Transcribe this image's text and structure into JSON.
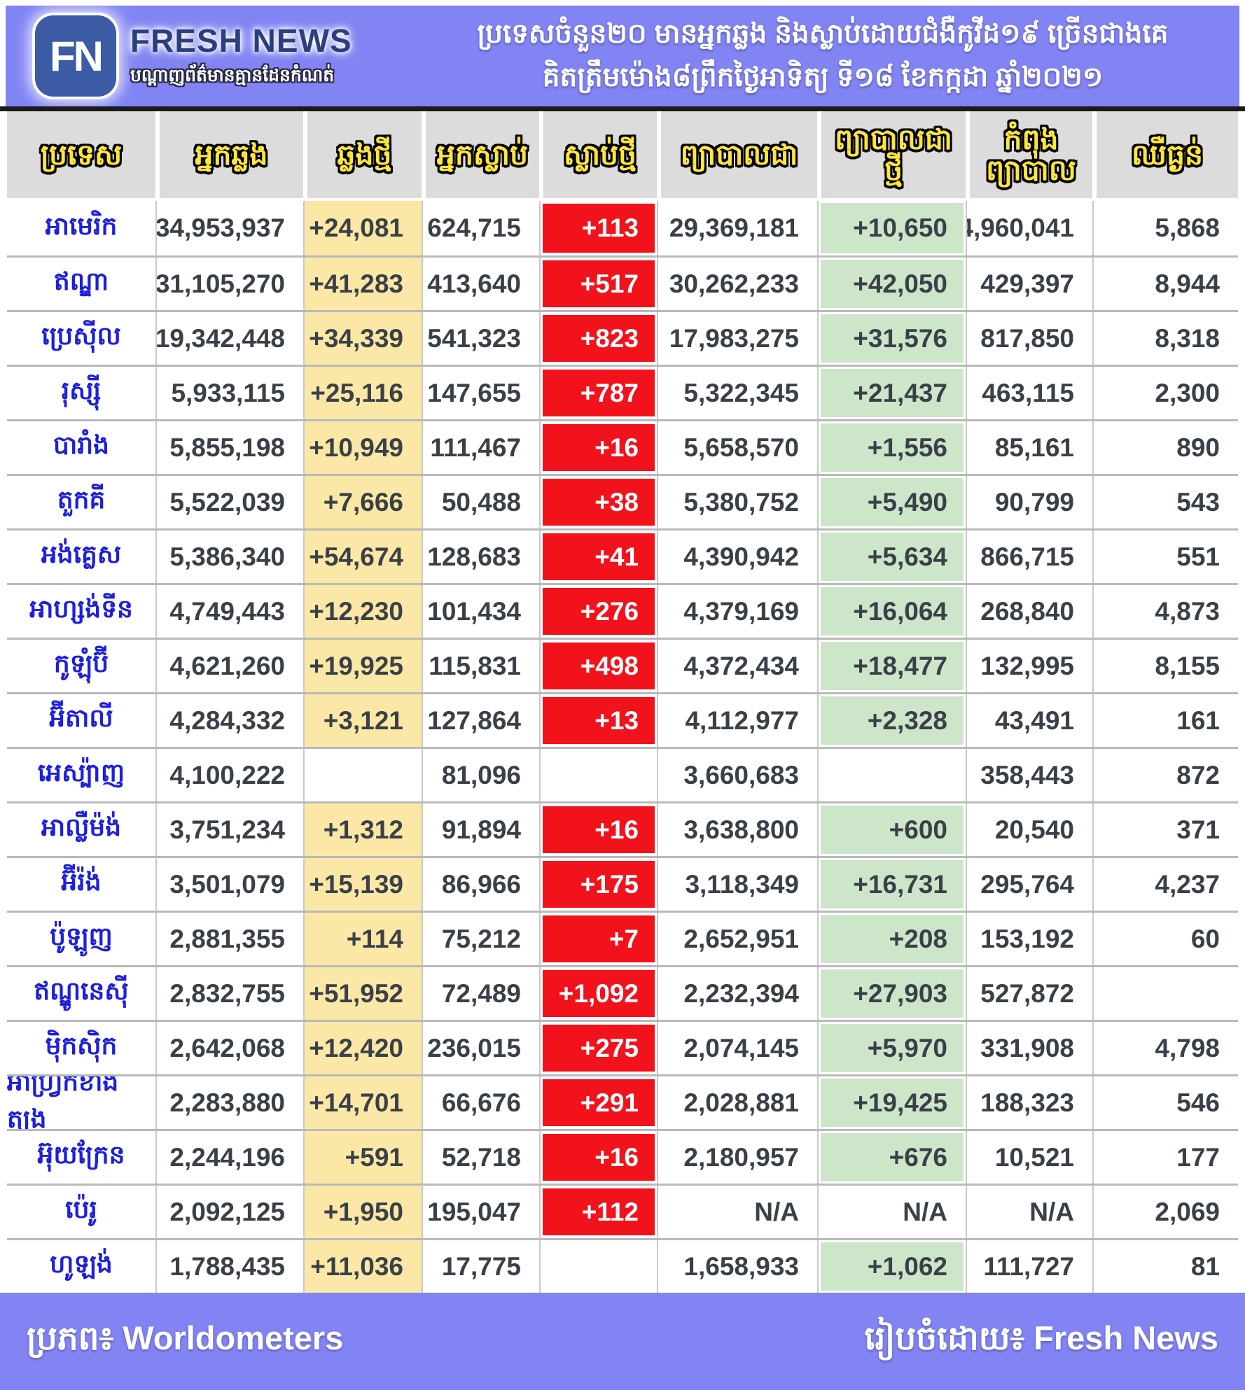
{
  "header": {
    "logo": {
      "monogram": "FN",
      "brand": "FRESH NEWS",
      "tagline": "បណ្តាញព័ត៌មានគ្មានដែនកំណត់"
    },
    "title_line1": "ប្រទេសចំនួន២០ មានអ្នកឆ្លង និងស្លាប់ដោយជំងឺកូវីដ១៩ ច្រើនជាងគេ",
    "title_line2": "គិតត្រឹមម៉ោង៨ព្រឹកថ្ងៃអាទិត្យ ទី១៨ ខែកក្កដា ឆ្នាំ២០២១"
  },
  "chart_data": {
    "type": "table",
    "columns": [
      {
        "key": "country",
        "label": "ប្រទេស"
      },
      {
        "key": "infected",
        "label": "អ្នកឆ្លង"
      },
      {
        "key": "new_cases",
        "label": "ឆ្លងថ្មី"
      },
      {
        "key": "deaths",
        "label": "អ្នកស្លាប់"
      },
      {
        "key": "new_deaths",
        "label": "ស្លាប់ថ្មី"
      },
      {
        "key": "recovered",
        "label": "ព្យាបាលជា"
      },
      {
        "key": "new_recovered",
        "label": "ព្យាបាលជា\nថ្មី"
      },
      {
        "key": "active",
        "label": "កំពុង\nព្យាបាល"
      },
      {
        "key": "critical",
        "label": "ឈឺធ្ងន់"
      }
    ],
    "rows": [
      {
        "country": "អាមេរិក",
        "infected": "34,953,937",
        "new_cases": "+24,081",
        "deaths": "624,715",
        "new_deaths": "+113",
        "recovered": "29,369,181",
        "new_recovered": "+10,650",
        "active": "4,960,041",
        "critical": "5,868"
      },
      {
        "country": "ឥណ្ឌា",
        "infected": "31,105,270",
        "new_cases": "+41,283",
        "deaths": "413,640",
        "new_deaths": "+517",
        "recovered": "30,262,233",
        "new_recovered": "+42,050",
        "active": "429,397",
        "critical": "8,944"
      },
      {
        "country": "ប្រេស៊ីល",
        "infected": "19,342,448",
        "new_cases": "+34,339",
        "deaths": "541,323",
        "new_deaths": "+823",
        "recovered": "17,983,275",
        "new_recovered": "+31,576",
        "active": "817,850",
        "critical": "8,318"
      },
      {
        "country": "រុស្ស៊ី",
        "infected": "5,933,115",
        "new_cases": "+25,116",
        "deaths": "147,655",
        "new_deaths": "+787",
        "recovered": "5,322,345",
        "new_recovered": "+21,437",
        "active": "463,115",
        "critical": "2,300"
      },
      {
        "country": "បារាំង",
        "infected": "5,855,198",
        "new_cases": "+10,949",
        "deaths": "111,467",
        "new_deaths": "+16",
        "recovered": "5,658,570",
        "new_recovered": "+1,556",
        "active": "85,161",
        "critical": "890"
      },
      {
        "country": "តួកគី",
        "infected": "5,522,039",
        "new_cases": "+7,666",
        "deaths": "50,488",
        "new_deaths": "+38",
        "recovered": "5,380,752",
        "new_recovered": "+5,490",
        "active": "90,799",
        "critical": "543"
      },
      {
        "country": "អង់គ្លេស",
        "infected": "5,386,340",
        "new_cases": "+54,674",
        "deaths": "128,683",
        "new_deaths": "+41",
        "recovered": "4,390,942",
        "new_recovered": "+5,634",
        "active": "866,715",
        "critical": "551"
      },
      {
        "country": "អាហ្សង់ទីន",
        "infected": "4,749,443",
        "new_cases": "+12,230",
        "deaths": "101,434",
        "new_deaths": "+276",
        "recovered": "4,379,169",
        "new_recovered": "+16,064",
        "active": "268,840",
        "critical": "4,873"
      },
      {
        "country": "កូឡុំប៊ី",
        "infected": "4,621,260",
        "new_cases": "+19,925",
        "deaths": "115,831",
        "new_deaths": "+498",
        "recovered": "4,372,434",
        "new_recovered": "+18,477",
        "active": "132,995",
        "critical": "8,155"
      },
      {
        "country": "អ៊ីតាលី",
        "infected": "4,284,332",
        "new_cases": "+3,121",
        "deaths": "127,864",
        "new_deaths": "+13",
        "recovered": "4,112,977",
        "new_recovered": "+2,328",
        "active": "43,491",
        "critical": "161"
      },
      {
        "country": "អេស្ប៉ាញ",
        "infected": "4,100,222",
        "new_cases": "",
        "deaths": "81,096",
        "new_deaths": "",
        "recovered": "3,660,683",
        "new_recovered": "",
        "active": "358,443",
        "critical": "872"
      },
      {
        "country": "អាល្លឺម៉ង់",
        "infected": "3,751,234",
        "new_cases": "+1,312",
        "deaths": "91,894",
        "new_deaths": "+16",
        "recovered": "3,638,800",
        "new_recovered": "+600",
        "active": "20,540",
        "critical": "371"
      },
      {
        "country": "អ៊ីរ៉ង់",
        "infected": "3,501,079",
        "new_cases": "+15,139",
        "deaths": "86,966",
        "new_deaths": "+175",
        "recovered": "3,118,349",
        "new_recovered": "+16,731",
        "active": "295,764",
        "critical": "4,237"
      },
      {
        "country": "ប៉ូឡូញ",
        "infected": "2,881,355",
        "new_cases": "+114",
        "deaths": "75,212",
        "new_deaths": "+7",
        "recovered": "2,652,951",
        "new_recovered": "+208",
        "active": "153,192",
        "critical": "60"
      },
      {
        "country": "ឥណ្ឌូនេស៊ី",
        "infected": "2,832,755",
        "new_cases": "+51,952",
        "deaths": "72,489",
        "new_deaths": "+1,092",
        "recovered": "2,232,394",
        "new_recovered": "+27,903",
        "active": "527,872",
        "critical": ""
      },
      {
        "country": "ម៉ិកស៊ិក",
        "infected": "2,642,068",
        "new_cases": "+12,420",
        "deaths": "236,015",
        "new_deaths": "+275",
        "recovered": "2,074,145",
        "new_recovered": "+5,970",
        "active": "331,908",
        "critical": "4,798"
      },
      {
        "country": "អាហ្វ្រិកខាងត្បូង",
        "infected": "2,283,880",
        "new_cases": "+14,701",
        "deaths": "66,676",
        "new_deaths": "+291",
        "recovered": "2,028,881",
        "new_recovered": "+19,425",
        "active": "188,323",
        "critical": "546"
      },
      {
        "country": "អ៊ុយក្រែន",
        "infected": "2,244,196",
        "new_cases": "+591",
        "deaths": "52,718",
        "new_deaths": "+16",
        "recovered": "2,180,957",
        "new_recovered": "+676",
        "active": "10,521",
        "critical": "177"
      },
      {
        "country": "ប៉េរូ",
        "infected": "2,092,125",
        "new_cases": "+1,950",
        "deaths": "195,047",
        "new_deaths": "+112",
        "recovered": "N/A",
        "new_recovered": "N/A",
        "active": "N/A",
        "critical": "2,069"
      },
      {
        "country": "ហូឡង់",
        "infected": "1,788,435",
        "new_cases": "+11,036",
        "deaths": "17,775",
        "new_deaths": "",
        "recovered": "1,658,933",
        "new_recovered": "+1,062",
        "active": "111,727",
        "critical": "81"
      }
    ]
  },
  "footer": {
    "source": "ប្រភព៖ Worldometers",
    "prepared_by": "រៀបចំដោយ៖ Fresh News"
  },
  "colors": {
    "banner_bg": "#8184f2",
    "head_bg": "#dcdcdc",
    "red": "#f2121b",
    "yellow": "#fbe8a6",
    "green": "#cde6ca",
    "country_blue": "#1c1fe0",
    "num_dark": "#3a4048",
    "header_yellow": "#ffe63a",
    "logo_blue": "#3b5ba5",
    "brand_navy": "#2c3f7d"
  }
}
